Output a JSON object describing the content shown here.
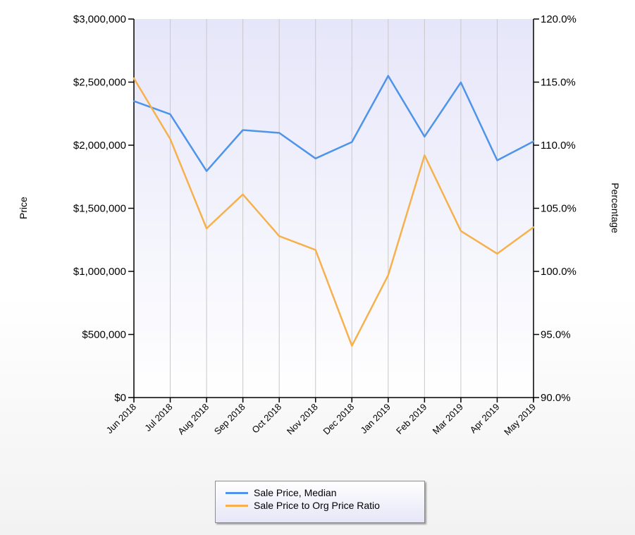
{
  "chart_data": {
    "type": "line",
    "categories": [
      "Jun 2018",
      "Jul 2018",
      "Aug 2018",
      "Sep 2018",
      "Oct 2018",
      "Nov 2018",
      "Dec 2018",
      "Jan 2019",
      "Feb 2019",
      "Mar 2019",
      "Apr 2019",
      "May 2019"
    ],
    "series": [
      {
        "name": "Sale Price, Median",
        "axis": "left",
        "color": "#4d94ea",
        "values": [
          2350000,
          2245000,
          1795000,
          2120000,
          2098000,
          1895000,
          2025000,
          2550000,
          2068000,
          2498000,
          1880000,
          2030000
        ]
      },
      {
        "name": "Sale Price to Org Price Ratio",
        "axis": "right",
        "color": "#f7b14c",
        "values": [
          115.3,
          110.5,
          103.4,
          106.1,
          102.8,
          101.7,
          94.1,
          99.7,
          109.2,
          103.2,
          101.4,
          103.5
        ]
      }
    ],
    "ylabel": "Price",
    "y2label": "Percentage",
    "ylim": [
      0,
      3000000
    ],
    "y2lim": [
      90,
      120
    ],
    "yticks": [
      0,
      500000,
      1000000,
      1500000,
      2000000,
      2500000,
      3000000
    ],
    "ytick_labels": [
      "$0",
      "$500,000",
      "$1,000,000",
      "$1,500,000",
      "$2,000,000",
      "$2,500,000",
      "$3,000,000"
    ],
    "y2ticks": [
      90,
      95,
      100,
      105,
      110,
      115,
      120
    ],
    "y2tick_labels": [
      "90.0%",
      "95.0%",
      "100.0%",
      "105.0%",
      "110.0%",
      "115.0%",
      "120.0%"
    ],
    "grid": "vertical",
    "legend_position": "bottom-center",
    "plot_background": "#e6e6fa"
  }
}
